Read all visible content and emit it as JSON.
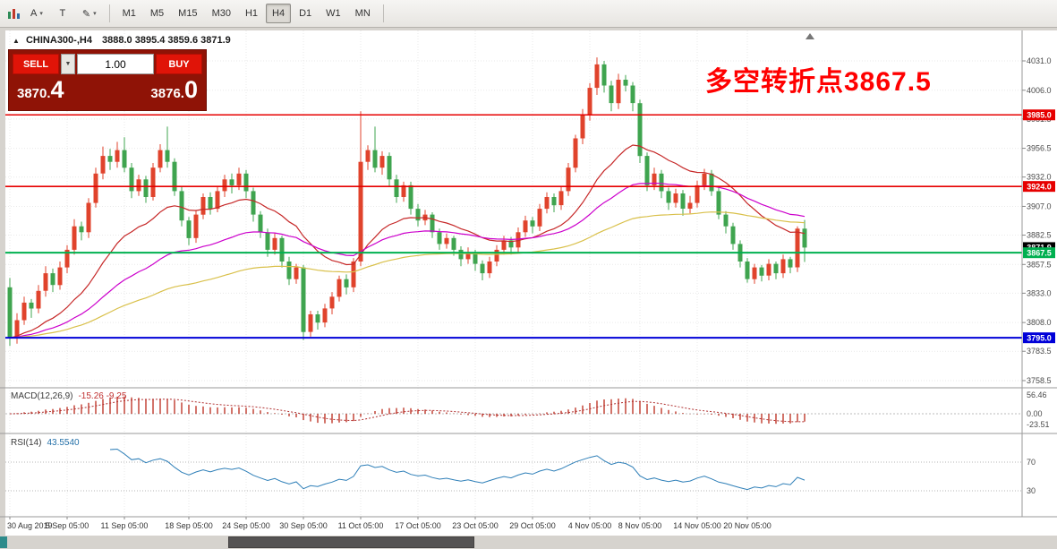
{
  "toolbar": {
    "a_label": "A",
    "t_label": "T",
    "timeframes": [
      "M1",
      "M5",
      "M15",
      "M30",
      "H1",
      "H4",
      "D1",
      "W1",
      "MN"
    ],
    "active_timeframe": "H4"
  },
  "chart": {
    "header": {
      "symbol_period": "CHINA300-,H4",
      "ohlc": "3888.0 3895.4 3859.6 3871.9"
    },
    "annotation": {
      "text": "多空转折点3867.5",
      "color": "#ff0000"
    },
    "levels": [
      {
        "price": 3985.0,
        "label": "3985.0",
        "color": "#e60000",
        "width": 1.6
      },
      {
        "price": 3924.0,
        "label": "3924.0",
        "color": "#e60000",
        "width": 1.6
      },
      {
        "price": 3867.5,
        "label": "3867.5",
        "color": "#00b050",
        "width": 2
      },
      {
        "price": 3795.0,
        "label": "3795.0",
        "color": "#0000d8",
        "width": 2
      }
    ],
    "current_price": {
      "label": "3871.9",
      "price": 3871.9,
      "color": "#000000"
    },
    "price_ticks": [
      "4031.0",
      "4006.0",
      "3981.5",
      "3956.5",
      "3932.0",
      "3907.0",
      "3882.5",
      "3857.5",
      "3833.0",
      "3808.0",
      "3783.5",
      "3758.5"
    ]
  },
  "trade_panel": {
    "sell_label": "SELL",
    "buy_label": "BUY",
    "volume": "1.00",
    "sell_price_main": "3870.",
    "sell_price_big": "4",
    "buy_price_main": "3876.",
    "buy_price_big": "0"
  },
  "macd": {
    "label": "MACD(12,26,9)",
    "values": "-15.26 -9.25",
    "axis": [
      "56.46",
      "0.00",
      "-23.51"
    ],
    "color": "#c0392b",
    "signal_color": "#b03030"
  },
  "rsi": {
    "label": "RSI(14)",
    "value": "43.5540",
    "levels": [
      70,
      30
    ],
    "color": "#2e7fb8"
  },
  "time_axis": {
    "labels": [
      {
        "label": "30 Aug 2019",
        "bar": 0
      },
      {
        "label": "5 Sep 05:00",
        "bar": 8
      },
      {
        "label": "11 Sep 05:00",
        "bar": 16
      },
      {
        "label": "18 Sep 05:00",
        "bar": 25
      },
      {
        "label": "24 Sep 05:00",
        "bar": 33
      },
      {
        "label": "30 Sep 05:00",
        "bar": 41
      },
      {
        "label": "11 Oct 05:00",
        "bar": 49
      },
      {
        "label": "17 Oct 05:00",
        "bar": 57
      },
      {
        "label": "23 Oct 05:00",
        "bar": 65
      },
      {
        "label": "29 Oct 05:00",
        "bar": 73
      },
      {
        "label": "4 Nov 05:00",
        "bar": 81
      },
      {
        "label": "8 Nov 05:00",
        "bar": 88
      },
      {
        "label": "14 Nov 05:00",
        "bar": 96
      },
      {
        "label": "20 Nov 05:00",
        "bar": 103
      }
    ]
  },
  "chart_data": {
    "type": "candlestick",
    "title": "CHINA300-,H4",
    "symbol": "CHINA300-",
    "timeframe": "H4",
    "ylim": [
      3752,
      4057
    ],
    "bull_color": "#e0432c",
    "bear_color": "#3fa44f",
    "ma_periods": [
      20,
      45,
      90
    ],
    "ma_colors": [
      "#c62828",
      "#cc00cc",
      "#d9c04a"
    ],
    "ohlc": [
      [
        3838,
        3846,
        3788,
        3795
      ],
      [
        3795,
        3816,
        3790,
        3810
      ],
      [
        3810,
        3830,
        3806,
        3825
      ],
      [
        3825,
        3828,
        3812,
        3820
      ],
      [
        3820,
        3840,
        3816,
        3835
      ],
      [
        3835,
        3856,
        3830,
        3850
      ],
      [
        3850,
        3854,
        3834,
        3840
      ],
      [
        3840,
        3860,
        3836,
        3855
      ],
      [
        3855,
        3874,
        3850,
        3870
      ],
      [
        3870,
        3896,
        3866,
        3890
      ],
      [
        3890,
        3894,
        3878,
        3885
      ],
      [
        3885,
        3914,
        3880,
        3910
      ],
      [
        3910,
        3940,
        3906,
        3935
      ],
      [
        3935,
        3958,
        3930,
        3950
      ],
      [
        3950,
        3956,
        3938,
        3945
      ],
      [
        3945,
        3962,
        3940,
        3955
      ],
      [
        3955,
        3966,
        3936,
        3940
      ],
      [
        3940,
        3944,
        3914,
        3920
      ],
      [
        3920,
        3934,
        3916,
        3930
      ],
      [
        3930,
        3933,
        3910,
        3915
      ],
      [
        3915,
        3944,
        3912,
        3940
      ],
      [
        3940,
        3960,
        3936,
        3955
      ],
      [
        3955,
        3975,
        3940,
        3945
      ],
      [
        3945,
        3948,
        3916,
        3920
      ],
      [
        3920,
        3924,
        3890,
        3895
      ],
      [
        3895,
        3898,
        3874,
        3880
      ],
      [
        3880,
        3904,
        3876,
        3900
      ],
      [
        3900,
        3918,
        3896,
        3915
      ],
      [
        3915,
        3919,
        3900,
        3905
      ],
      [
        3905,
        3924,
        3902,
        3920
      ],
      [
        3920,
        3934,
        3915,
        3930
      ],
      [
        3930,
        3935,
        3918,
        3925
      ],
      [
        3925,
        3940,
        3921,
        3935
      ],
      [
        3935,
        3938,
        3914,
        3920
      ],
      [
        3920,
        3923,
        3894,
        3900
      ],
      [
        3900,
        3903,
        3880,
        3885
      ],
      [
        3885,
        3888,
        3864,
        3870
      ],
      [
        3870,
        3884,
        3866,
        3880
      ],
      [
        3880,
        3882,
        3855,
        3860
      ],
      [
        3860,
        3864,
        3840,
        3845
      ],
      [
        3845,
        3858,
        3841,
        3855
      ],
      [
        3855,
        3857,
        3793,
        3800
      ],
      [
        3800,
        3818,
        3796,
        3815
      ],
      [
        3815,
        3818,
        3802,
        3808
      ],
      [
        3808,
        3824,
        3804,
        3820
      ],
      [
        3820,
        3834,
        3815,
        3830
      ],
      [
        3830,
        3848,
        3826,
        3845
      ],
      [
        3845,
        3849,
        3832,
        3838
      ],
      [
        3838,
        3863,
        3834,
        3860
      ],
      [
        3860,
        3988,
        3856,
        3945
      ],
      [
        3945,
        3959,
        3938,
        3955
      ],
      [
        3955,
        3975,
        3936,
        3940
      ],
      [
        3940,
        3954,
        3934,
        3950
      ],
      [
        3950,
        3953,
        3924,
        3930
      ],
      [
        3930,
        3934,
        3910,
        3915
      ],
      [
        3915,
        3928,
        3911,
        3925
      ],
      [
        3925,
        3928,
        3900,
        3905
      ],
      [
        3905,
        3909,
        3890,
        3895
      ],
      [
        3895,
        3904,
        3891,
        3900
      ],
      [
        3900,
        3902,
        3880,
        3885
      ],
      [
        3885,
        3888,
        3870,
        3875
      ],
      [
        3875,
        3884,
        3871,
        3880
      ],
      [
        3880,
        3882,
        3865,
        3870
      ],
      [
        3870,
        3873,
        3856,
        3862
      ],
      [
        3862,
        3872,
        3858,
        3868
      ],
      [
        3868,
        3870,
        3852,
        3858
      ],
      [
        3858,
        3861,
        3844,
        3850
      ],
      [
        3850,
        3864,
        3846,
        3860
      ],
      [
        3860,
        3874,
        3856,
        3870
      ],
      [
        3870,
        3882,
        3866,
        3878
      ],
      [
        3878,
        3881,
        3866,
        3872
      ],
      [
        3872,
        3889,
        3868,
        3885
      ],
      [
        3885,
        3899,
        3881,
        3895
      ],
      [
        3895,
        3898,
        3884,
        3890
      ],
      [
        3890,
        3909,
        3886,
        3905
      ],
      [
        3905,
        3919,
        3901,
        3915
      ],
      [
        3915,
        3918,
        3902,
        3908
      ],
      [
        3908,
        3924,
        3904,
        3920
      ],
      [
        3920,
        3944,
        3916,
        3940
      ],
      [
        3940,
        3968,
        3936,
        3965
      ],
      [
        3965,
        3990,
        3960,
        3985
      ],
      [
        3985,
        4012,
        3980,
        4008
      ],
      [
        4008,
        4034,
        4002,
        4028
      ],
      [
        4028,
        4031,
        4004,
        4010
      ],
      [
        4010,
        4014,
        3988,
        3995
      ],
      [
        3995,
        4020,
        3990,
        4015
      ],
      [
        4015,
        4019,
        4005,
        4010
      ],
      [
        4010,
        4013,
        3988,
        3995
      ],
      [
        3995,
        3998,
        3944,
        3950
      ],
      [
        3950,
        3953,
        3920,
        3925
      ],
      [
        3925,
        3940,
        3921,
        3935
      ],
      [
        3935,
        3938,
        3914,
        3920
      ],
      [
        3920,
        3923,
        3904,
        3910
      ],
      [
        3910,
        3922,
        3906,
        3918
      ],
      [
        3918,
        3921,
        3899,
        3905
      ],
      [
        3905,
        3916,
        3901,
        3910
      ],
      [
        3910,
        3929,
        3906,
        3925
      ],
      [
        3925,
        3939,
        3921,
        3935
      ],
      [
        3935,
        3938,
        3916,
        3920
      ],
      [
        3920,
        3923,
        3896,
        3900
      ],
      [
        3900,
        3903,
        3884,
        3890
      ],
      [
        3890,
        3893,
        3870,
        3875
      ],
      [
        3875,
        3878,
        3855,
        3860
      ],
      [
        3860,
        3863,
        3842,
        3845
      ],
      [
        3845,
        3858,
        3841,
        3855
      ],
      [
        3855,
        3857,
        3843,
        3848
      ],
      [
        3848,
        3862,
        3844,
        3858
      ],
      [
        3858,
        3860,
        3845,
        3850
      ],
      [
        3850,
        3866,
        3846,
        3862
      ],
      [
        3862,
        3864,
        3850,
        3855
      ],
      [
        3855,
        3890,
        3851,
        3888
      ],
      [
        3888,
        3895.4,
        3859.6,
        3871.9
      ]
    ]
  }
}
